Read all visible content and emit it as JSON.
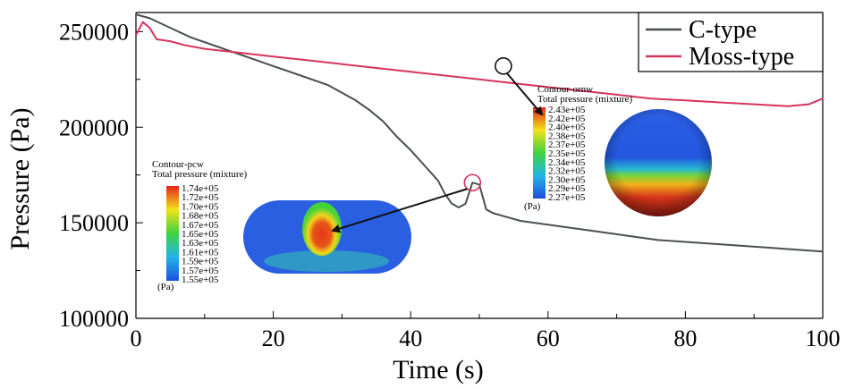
{
  "chart_data": {
    "type": "line",
    "xlabel": "Time (s)",
    "ylabel": "Pressure (Pa)",
    "xlim": [
      0,
      100
    ],
    "ylim": [
      100000,
      260000
    ],
    "x_ticks": [
      "0",
      "20",
      "40",
      "60",
      "80",
      "100"
    ],
    "y_ticks": [
      "100000",
      "150000",
      "200000",
      "250000"
    ],
    "legend_position": "top-right",
    "grid": false,
    "series": [
      {
        "name": "C-type",
        "color": "#4a4f4f",
        "x": [
          0,
          2,
          5,
          8,
          12,
          16,
          20,
          24,
          28,
          30,
          32,
          34,
          36,
          38,
          40,
          42,
          44,
          45,
          46,
          47,
          48,
          49,
          50,
          51,
          52,
          54,
          56,
          58,
          60,
          64,
          68,
          72,
          76,
          80,
          84,
          88,
          92,
          96,
          100
        ],
        "y": [
          259000,
          257000,
          252000,
          247000,
          242000,
          237000,
          232000,
          227000,
          222000,
          218000,
          214000,
          209000,
          203000,
          195000,
          188000,
          180000,
          172000,
          165000,
          160000,
          158000,
          160000,
          171000,
          170000,
          157000,
          155000,
          153000,
          151000,
          150000,
          149000,
          147000,
          145000,
          143000,
          141000,
          140000,
          139000,
          138000,
          137000,
          136000,
          135000
        ]
      },
      {
        "name": "Moss-type",
        "color": "#d6345a",
        "x": [
          0,
          1,
          2,
          3,
          5,
          7,
          10,
          15,
          20,
          25,
          30,
          35,
          40,
          45,
          50,
          55,
          60,
          65,
          70,
          75,
          80,
          85,
          90,
          95,
          98,
          100
        ],
        "y": [
          248000,
          255000,
          252000,
          246000,
          245000,
          243000,
          241000,
          239000,
          237000,
          235000,
          233000,
          231000,
          229000,
          227000,
          225000,
          223000,
          221000,
          219000,
          217000,
          215000,
          214000,
          213000,
          212000,
          211000,
          212000,
          215000
        ]
      }
    ],
    "annotations": [
      {
        "marker_series": "C-type",
        "marker_x": 49,
        "marker_y": 171000,
        "title": "Contour-pcw",
        "subtitle": "Total pressure (mixture)",
        "unit": "(Pa)",
        "levels": [
          "1.74e+05",
          "1.72e+05",
          "1.70e+05",
          "1.68e+05",
          "1.67e+05",
          "1.65e+05",
          "1.63e+05",
          "1.61e+05",
          "1.59e+05",
          "1.57e+05",
          "1.55e+05"
        ]
      },
      {
        "marker_series": "Moss-type",
        "marker_x": 53.5,
        "marker_y": 232000,
        "title": "Contour-ornw",
        "subtitle": "Total pressure (mixture)",
        "unit": "(Pa)",
        "levels": [
          "2.43e+05",
          "2.42e+05",
          "2.40e+05",
          "2.38e+05",
          "2.37e+05",
          "2.35e+05",
          "2.34e+05",
          "2.32e+05",
          "2.30e+05",
          "2.29e+05",
          "2.27e+05"
        ]
      }
    ]
  }
}
